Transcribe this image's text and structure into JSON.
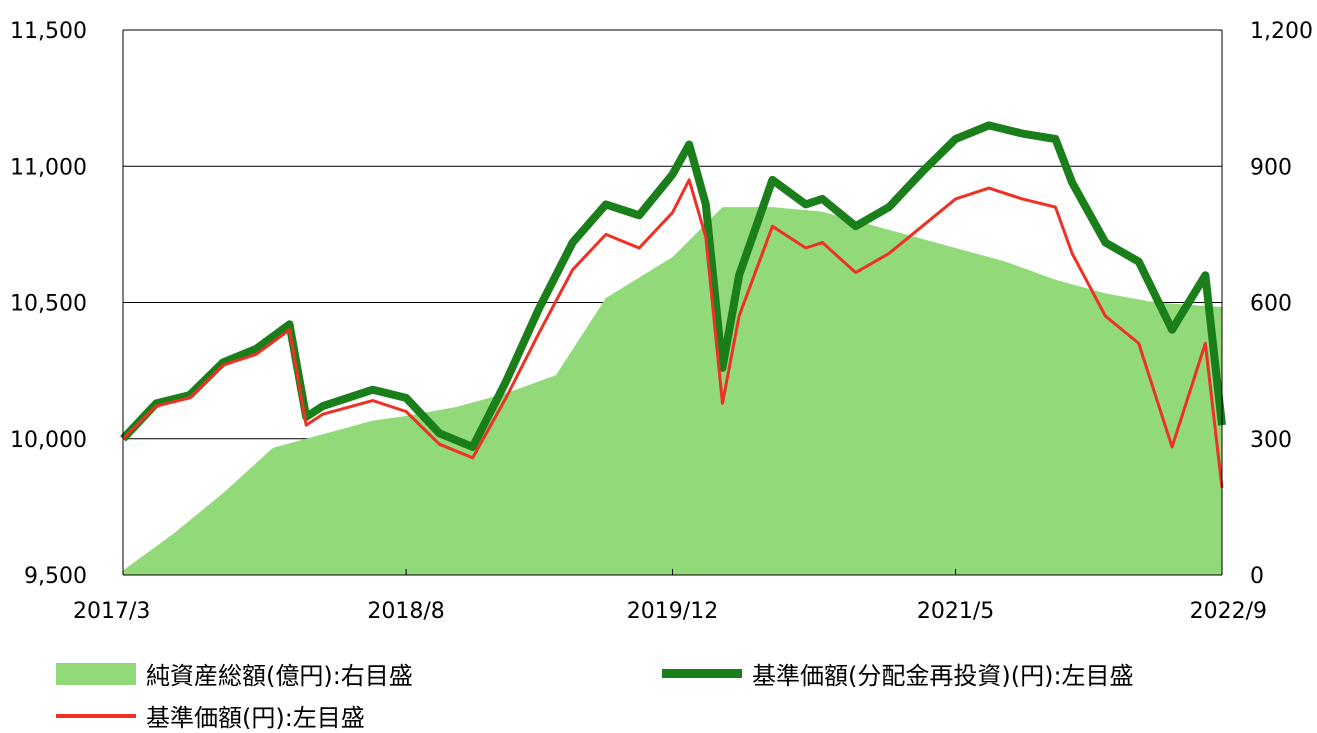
{
  "chart_data": {
    "type": "area",
    "x_ticks": [
      "2017/3",
      "2018/8",
      "2019/12",
      "2021/5",
      "2022/9"
    ],
    "y_left": {
      "ticks": [
        "9,500",
        "10,000",
        "10,500",
        "11,000",
        "11,500"
      ],
      "tick_values": [
        9500,
        10000,
        10500,
        11000,
        11500
      ],
      "lim": [
        9500,
        11500
      ]
    },
    "y_right": {
      "ticks": [
        "0",
        "300",
        "600",
        "900",
        "1,200"
      ],
      "tick_values": [
        0,
        300,
        600,
        900,
        1200
      ],
      "lim": [
        0,
        1200
      ]
    },
    "grid": "horizontal",
    "series": [
      {
        "name": "純資産総額(億円):右目盛",
        "axis": "right",
        "kind": "area",
        "color": "#92d97a",
        "x": [
          "2017/3",
          "2017/6",
          "2017/9",
          "2017/12",
          "2018/3",
          "2018/6",
          "2018/8",
          "2018/11",
          "2019/2",
          "2019/5",
          "2019/8",
          "2019/12",
          "2020/3",
          "2020/6",
          "2020/9",
          "2020/12",
          "2021/3",
          "2021/5",
          "2021/8",
          "2021/11",
          "2022/2",
          "2022/5",
          "2022/9"
        ],
        "values": [
          10,
          90,
          180,
          280,
          310,
          340,
          350,
          370,
          400,
          440,
          610,
          700,
          810,
          810,
          800,
          770,
          740,
          720,
          690,
          650,
          620,
          600,
          590
        ]
      },
      {
        "name": "基準価額(分配金再投資)(円):左目盛",
        "axis": "left",
        "kind": "line",
        "color": "#1a7f1a",
        "x": [
          "2017/3",
          "2017/5",
          "2017/7",
          "2017/9",
          "2017/11",
          "2018/1",
          "2018/2",
          "2018/3",
          "2018/6",
          "2018/8",
          "2018/10",
          "2018/12",
          "2019/2",
          "2019/4",
          "2019/6",
          "2019/8",
          "2019/10",
          "2019/12",
          "2020/1",
          "2020/2",
          "2020/3",
          "2020/4",
          "2020/6",
          "2020/8",
          "2020/9",
          "2020/11",
          "2021/1",
          "2021/3",
          "2021/5",
          "2021/7",
          "2021/9",
          "2021/11",
          "2021/12",
          "2022/2",
          "2022/4",
          "2022/6",
          "2022/8",
          "2022/9"
        ],
        "values": [
          10000,
          10130,
          10160,
          10280,
          10330,
          10420,
          10080,
          10120,
          10180,
          10150,
          10020,
          9970,
          10210,
          10480,
          10720,
          10860,
          10820,
          10970,
          11080,
          10860,
          10260,
          10600,
          10950,
          10860,
          10880,
          10780,
          10850,
          10980,
          11100,
          11150,
          11120,
          11100,
          10940,
          10720,
          10650,
          10400,
          10600,
          10050
        ]
      },
      {
        "name": "基準価額(円):左目盛",
        "axis": "left",
        "kind": "line",
        "color": "#ee3124",
        "x": [
          "2017/3",
          "2017/5",
          "2017/7",
          "2017/9",
          "2017/11",
          "2018/1",
          "2018/2",
          "2018/3",
          "2018/6",
          "2018/8",
          "2018/10",
          "2018/12",
          "2019/2",
          "2019/4",
          "2019/6",
          "2019/8",
          "2019/10",
          "2019/12",
          "2020/1",
          "2020/2",
          "2020/3",
          "2020/4",
          "2020/6",
          "2020/8",
          "2020/9",
          "2020/11",
          "2021/1",
          "2021/3",
          "2021/5",
          "2021/7",
          "2021/9",
          "2021/11",
          "2021/12",
          "2022/2",
          "2022/4",
          "2022/6",
          "2022/8",
          "2022/9"
        ],
        "values": [
          10000,
          10120,
          10150,
          10270,
          10310,
          10400,
          10050,
          10090,
          10140,
          10100,
          9980,
          9930,
          10150,
          10390,
          10620,
          10750,
          10700,
          10830,
          10950,
          10740,
          10130,
          10450,
          10780,
          10700,
          10720,
          10610,
          10680,
          10780,
          10880,
          10920,
          10880,
          10850,
          10680,
          10450,
          10350,
          9970,
          10350,
          9820
        ]
      }
    ]
  },
  "legend": {
    "aum": "純資産総額(億円):右目盛",
    "nav_reinvest": "基準価額(分配金再投資)(円):左目盛",
    "nav": "基準価額(円):左目盛"
  }
}
